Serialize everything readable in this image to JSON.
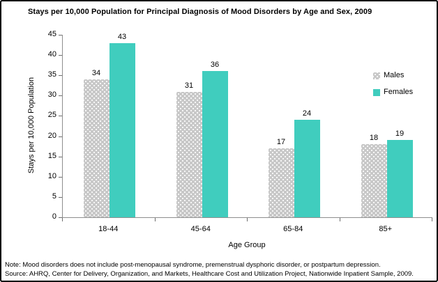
{
  "title": "Stays per 10,000  Population for Principal Diagnosis of Mood Disorders by Age and Sex, 2009",
  "chart_data": {
    "type": "bar",
    "categories": [
      "18-44",
      "45-64",
      "65-84",
      "85+"
    ],
    "series": [
      {
        "name": "Males",
        "color": "#c8c8c8",
        "pattern": "dots",
        "values": [
          34,
          31,
          17,
          18
        ]
      },
      {
        "name": "Females",
        "color": "#40cdbe",
        "pattern": "solid",
        "values": [
          43,
          36,
          24,
          19
        ]
      }
    ],
    "xlabel": "Age Group",
    "ylabel": "Stays per 10,000 Population",
    "ylim": [
      0,
      45
    ],
    "ytick_step": 5,
    "grid": false,
    "legend_position": "right-inside",
    "data_labels": true
  },
  "notes": {
    "note": "Note: Mood disorders does not include post-menopausal syndrome, premenstrual dysphoric disorder, or postpartum depression.",
    "source": "Source: AHRQ, Center for Delivery, Organization, and Markets, Healthcare Cost and Utilization Project, Nationwide Inpatient Sample, 2009."
  },
  "colors": {
    "males_fill": "#c8c8c8",
    "females_fill": "#40cdbe",
    "axis_line": "#8e8e8e",
    "tick": "#6e6e6e",
    "text": "#000000",
    "frame_border": "#000000",
    "background": "#ffffff"
  }
}
